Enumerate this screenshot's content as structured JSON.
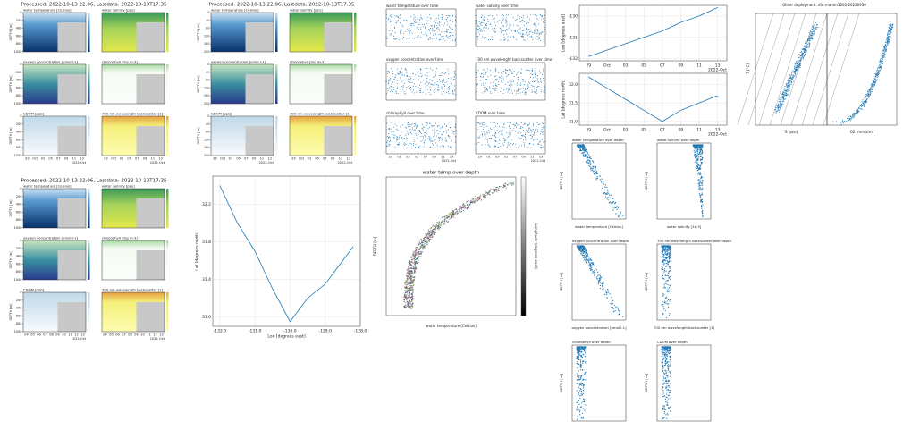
{
  "dashboards": [
    {
      "title": "Processed: 2022-10-13 22:06, Lastdata: 2022-10-13T17:35",
      "panels": [
        "water temperature [Celsius]",
        "water salinity [psu]",
        "oxygen concentration [umol l-1]",
        "chlorophyll [mg m-3]",
        "CDOM [ppb]",
        "700 nm wavelength backscatter [1]"
      ],
      "ylabel": "DEPTH [m]",
      "yticks": [
        0,
        200,
        400,
        600,
        800,
        1000
      ],
      "xticks": [
        "29",
        "Oct",
        "03",
        "05",
        "07",
        "09",
        "11",
        "13"
      ],
      "xnote": "2022-Oct"
    },
    {
      "title": "Processed: 2022-10-13 22:06, Lastdata: 2022-10-13T17:35",
      "panels": [
        "water temperature [Celsius]",
        "water salinity [psu]",
        "oxygen concentration [umol l-1]",
        "chlorophyll [mg m-3]",
        "CDOM [ppb]",
        "700 nm wavelength backscatter [1]"
      ],
      "ylabel": "DEPTH [m]",
      "yticks": [
        0,
        40,
        80,
        120,
        160,
        200
      ],
      "xticks": [
        "29",
        "Oct",
        "03",
        "05",
        "07",
        "09",
        "11",
        "13"
      ],
      "xnote": "2022-Oct"
    },
    {
      "title": "Processed: 2022-10-13 22:06, Lastdata: 2022-10-13T17:35",
      "panels": [
        "water temperature [Celsius]",
        "water salinity [psu]",
        "oxygen concentration [umol l-1]",
        "chlorophyll [mg m-3]",
        "CDOM [ppb]",
        "700 nm wavelength backscatter [1]"
      ],
      "ylabel": "DEPTH [m]",
      "yticks": [
        0,
        200,
        400,
        600,
        800,
        1000
      ],
      "xticks": [
        "04",
        "05",
        "06",
        "07",
        "08",
        "09",
        "10",
        "11",
        "12",
        "13"
      ],
      "xnote": "2022-Oct"
    }
  ],
  "time_scatter": {
    "panels": [
      "water temperature over time",
      "water salinity over time",
      "oxygen concentration over time",
      "700 nm wavelength backscatter over time",
      "chlorophyll over time",
      "CDOM over time"
    ],
    "xticks": [
      "29",
      "01",
      "03",
      "05",
      "07",
      "09",
      "11",
      "13"
    ],
    "xnote": "2022-Oct"
  },
  "depth_scatter": {
    "title": "water temp over depth",
    "xlabel": "water temperature [Celsius]",
    "ylabel": "DEPTH [m]",
    "cbar_label": "Longitude [degrees east]"
  },
  "profiles": {
    "panels": [
      "water temperature over depth",
      "water salinity over depth",
      "oxygen concentration over depth",
      "700 nm wavelength backscatter over depth",
      "chlorophyll over depth",
      "CDOM over depth"
    ],
    "xlabels": [
      "water temperature [Celsius]",
      "water salinity [1e-3]",
      "oxygen concentration [umol l-1]",
      "700 nm wavelength backscatter [1]",
      "",
      ""
    ],
    "ylabel": "DEPTH [m]"
  },
  "ts_plot": {
    "title": "Glider deployment: dfo-marvin1003-20220930",
    "xlabels": [
      "S [psu]",
      "O2 [mmol/m]"
    ],
    "ylabel": "T [°C]"
  },
  "chart_data": [
    {
      "type": "line",
      "ylabel": "Lon [degrees east]",
      "categories": [
        "29",
        "Oct",
        "03",
        "05",
        "07",
        "09",
        "11",
        "13"
      ],
      "values": [
        -131.9,
        -131.6,
        -131.3,
        -131.0,
        -130.7,
        -130.3,
        -130.0,
        -129.6
      ],
      "ylim": [
        -132.1,
        -129.5
      ],
      "yticks": [
        -132,
        -131,
        -130
      ],
      "xnote": "2022-Oct",
      "color": "#1f77b4",
      "grid": true
    },
    {
      "type": "line",
      "ylabel": "Lat [degrees north]",
      "categories": [
        "29",
        "Oct",
        "03",
        "05",
        "07",
        "09",
        "11",
        "13"
      ],
      "values": [
        32.2,
        31.9,
        31.6,
        31.3,
        31.0,
        31.3,
        31.5,
        31.7
      ],
      "ylim": [
        30.9,
        32.3
      ],
      "yticks": [
        {
          "value": 31,
          "label": "31.0"
        },
        31.5,
        {
          "value": 32,
          "label": "32.0"
        }
      ],
      "xnote": "2022-Oct",
      "color": "#1f77b4",
      "grid": true
    },
    {
      "type": "xyline",
      "xlabel": "Lon [degrees east]",
      "ylabel": "Lat [degrees north]",
      "x": [
        -132,
        -131.5,
        -131,
        -130.5,
        -130,
        -129.5,
        -129,
        -128.5,
        -128.2
      ],
      "values": [
        32.4,
        32.0,
        31.7,
        31.3,
        30.95,
        31.2,
        31.35,
        31.6,
        31.75
      ],
      "xlim": [
        -132.2,
        -128
      ],
      "ylim": [
        30.9,
        32.5
      ],
      "xticks": [
        {
          "value": -132,
          "label": "-132.0"
        },
        {
          "value": -131,
          "label": "-131.0"
        },
        {
          "value": -130,
          "label": "-130.0"
        },
        {
          "value": -129,
          "label": "-129.0"
        },
        {
          "value": -128,
          "label": "-128.0"
        }
      ],
      "yticks": [
        {
          "value": 31,
          "label": "31.0"
        },
        31.4,
        31.8,
        32.2
      ],
      "color": "#1f77b4",
      "grid": true
    }
  ]
}
